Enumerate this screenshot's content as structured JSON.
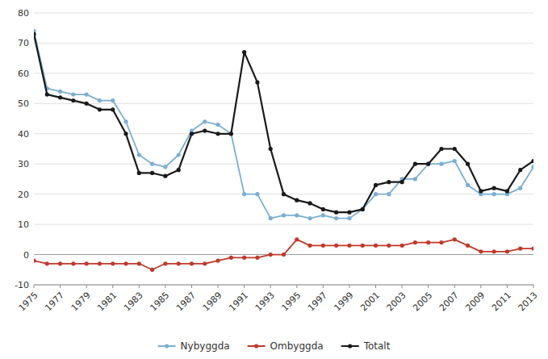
{
  "chart_data": {
    "type": "line",
    "x": [
      1975,
      1976,
      1977,
      1978,
      1979,
      1980,
      1981,
      1982,
      1983,
      1984,
      1985,
      1986,
      1987,
      1988,
      1989,
      1990,
      1991,
      1992,
      1993,
      1994,
      1995,
      1996,
      1997,
      1998,
      1999,
      2000,
      2001,
      2002,
      2003,
      2004,
      2005,
      2006,
      2007,
      2008,
      2009,
      2010,
      2011,
      2012,
      2013
    ],
    "series": [
      {
        "name": "Nybyggda",
        "color": "#7bafd4",
        "values": [
          74,
          55,
          54,
          53,
          53,
          51,
          51,
          44,
          33,
          30,
          29,
          33,
          41,
          44,
          43,
          40,
          20,
          20,
          12,
          13,
          13,
          12,
          13,
          12,
          12,
          15,
          20,
          20,
          25,
          25,
          30,
          30,
          31,
          23,
          20,
          20,
          20,
          22,
          29
        ]
      },
      {
        "name": "Ombyggda",
        "color": "#c0392b",
        "values": [
          -2,
          -3,
          -3,
          -3,
          -3,
          -3,
          -3,
          -3,
          -3,
          -5,
          -3,
          -3,
          -3,
          -3,
          -2,
          -1,
          -1,
          -1,
          0,
          0,
          5,
          3,
          3,
          3,
          3,
          3,
          3,
          3,
          3,
          4,
          4,
          4,
          5,
          3,
          1,
          1,
          1,
          2,
          2
        ]
      },
      {
        "name": "Totalt",
        "color": "#1a1a1a",
        "values": [
          73,
          53,
          52,
          51,
          50,
          48,
          48,
          40,
          27,
          27,
          26,
          28,
          40,
          41,
          40,
          40,
          67,
          57,
          35,
          20,
          18,
          17,
          15,
          14,
          14,
          15,
          23,
          24,
          24,
          30,
          30,
          35,
          35,
          30,
          21,
          22,
          21,
          28,
          31
        ]
      }
    ],
    "xlim": [
      1975,
      2013
    ],
    "xticks": [
      1975,
      1977,
      1979,
      1981,
      1983,
      1985,
      1987,
      1989,
      1991,
      1993,
      1995,
      1997,
      1999,
      2001,
      2003,
      2005,
      2007,
      2009,
      2011,
      2013
    ],
    "ylim": [
      -10,
      80
    ],
    "yticks": [
      -10,
      0,
      10,
      20,
      30,
      40,
      50,
      60,
      70,
      80
    ],
    "grid": true,
    "legend": "bottom",
    "marker": "circle"
  }
}
